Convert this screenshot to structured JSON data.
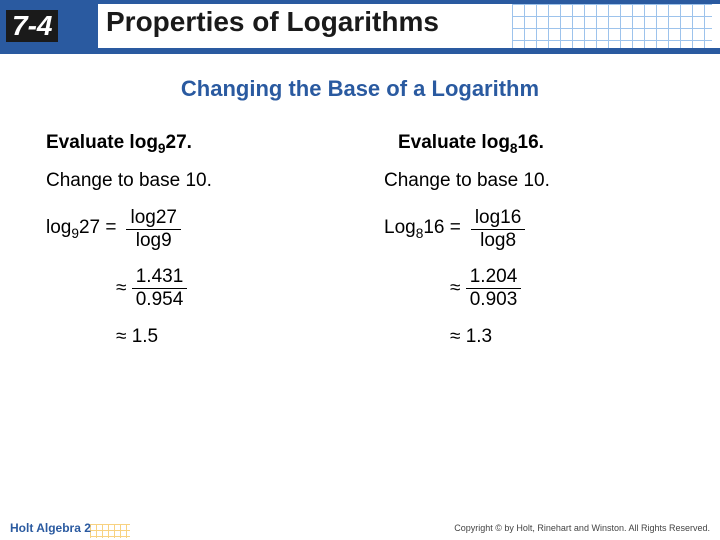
{
  "header": {
    "section_number": "7-4",
    "title": "Properties of Logarithms",
    "accent_color": "#2a5aa0"
  },
  "subtitle": "Changing the Base of a Logarithm",
  "left": {
    "prompt_prefix": "Evaluate log",
    "prompt_base": "9",
    "prompt_arg": "27.",
    "change_text": "Change to base 10.",
    "lhs_prefix": "log",
    "lhs_base": "9",
    "lhs_arg": "27 =",
    "frac_num": "log27",
    "frac_den": "log9",
    "approx_num": "1.431",
    "approx_den": "0.954",
    "result": "≈ 1.5"
  },
  "right": {
    "prompt_prefix": "Evaluate log",
    "prompt_base": "8",
    "prompt_arg": "16.",
    "change_text": "Change to base 10.",
    "lhs_prefix": "Log",
    "lhs_base": "8",
    "lhs_arg": "16 =",
    "frac_num": "log16",
    "frac_den": "log8",
    "approx_num": "1.204",
    "approx_den": "0.903",
    "result": "≈ 1.3"
  },
  "footer": {
    "book": "Holt Algebra 2",
    "copyright": "Copyright © by Holt, Rinehart and Winston. All Rights Reserved."
  },
  "symbols": {
    "approx": "≈"
  }
}
